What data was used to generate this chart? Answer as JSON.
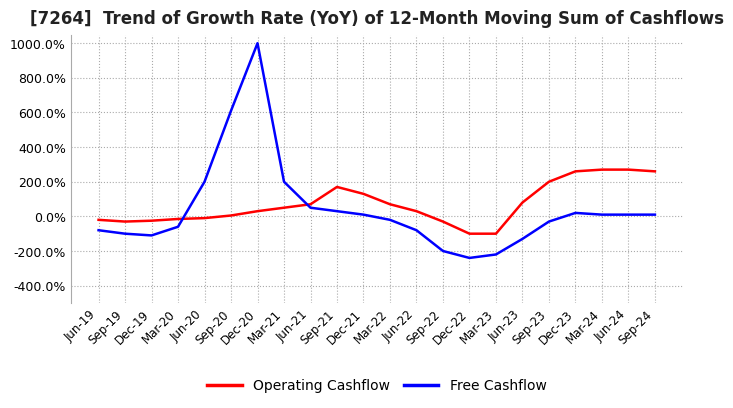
{
  "title": "[7264]  Trend of Growth Rate (YoY) of 12-Month Moving Sum of Cashflows",
  "title_fontsize": 12,
  "ylim": [
    -500,
    1050
  ],
  "yticks": [
    -400,
    -200,
    0,
    200,
    400,
    600,
    800,
    1000
  ],
  "background_color": "#ffffff",
  "grid_color": "#aaaaaa",
  "legend_labels": [
    "Operating Cashflow",
    "Free Cashflow"
  ],
  "legend_colors": [
    "#ff0000",
    "#0000ff"
  ],
  "x_labels": [
    "Jun-19",
    "Sep-19",
    "Dec-19",
    "Mar-20",
    "Jun-20",
    "Sep-20",
    "Dec-20",
    "Mar-21",
    "Jun-21",
    "Sep-21",
    "Dec-21",
    "Mar-22",
    "Jun-22",
    "Sep-22",
    "Dec-22",
    "Mar-23",
    "Jun-23",
    "Sep-23",
    "Dec-23",
    "Mar-24",
    "Jun-24",
    "Sep-24"
  ],
  "operating_cashflow": [
    -20,
    -30,
    -25,
    -15,
    -10,
    5,
    30,
    50,
    70,
    170,
    130,
    70,
    30,
    -30,
    -100,
    -100,
    80,
    200,
    260,
    270,
    270,
    260
  ],
  "free_cashflow": [
    -80,
    -100,
    -110,
    -60,
    200,
    610,
    1000,
    200,
    50,
    30,
    10,
    -20,
    -80,
    -200,
    -240,
    -220,
    -130,
    -30,
    20,
    10,
    10,
    10
  ]
}
